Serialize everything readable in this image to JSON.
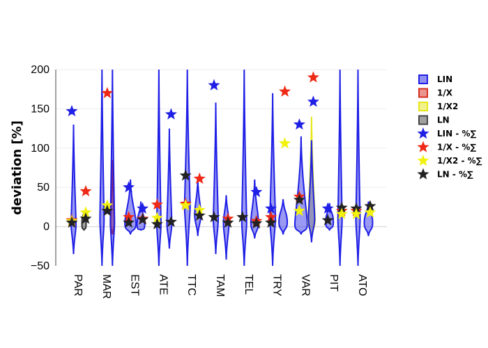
{
  "chart_data": {
    "type": "violin",
    "ylabel": "deviation [%]",
    "ylim": [
      -50,
      200
    ],
    "yticks": [
      -50,
      0,
      50,
      100,
      150,
      200
    ],
    "grid": true,
    "legend_position": "top-right",
    "categories": [
      "PAR",
      "MAR",
      "EST",
      "ATE",
      "TTC",
      "TAM",
      "TEL",
      "TRY",
      "VAR",
      "PIT",
      "ATO"
    ],
    "colors": {
      "LIN": "#1f1fe6",
      "1/X": "#d62d20",
      "1/X2": "#e6e61a",
      "LN": "#333333"
    },
    "legend": [
      {
        "name": "LIN",
        "symbol": "square",
        "color": "#1f1fe6"
      },
      {
        "name": "1/X",
        "symbol": "square",
        "color": "#d62d20"
      },
      {
        "name": "1/X2",
        "symbol": "square",
        "color": "#e6e61a"
      },
      {
        "name": "LN",
        "symbol": "square",
        "color": "#444444"
      },
      {
        "name": "LIN - %∑",
        "symbol": "star",
        "color": "#1f1fe6"
      },
      {
        "name": "1/X - %∑",
        "symbol": "star",
        "color": "#ee2a16"
      },
      {
        "name": "1/X2 - %∑",
        "symbol": "star",
        "color": "#f2f20f"
      },
      {
        "name": "LN - %∑",
        "symbol": "star",
        "color": "#222222"
      }
    ],
    "violins": [
      {
        "category": "PAR",
        "series": "LIN",
        "offset": -0.75,
        "min": -35,
        "max": 130,
        "center": 3,
        "width": 0.35
      },
      {
        "category": "PAR",
        "series": "LN",
        "offset": 0.75,
        "min": -5,
        "max": 20,
        "center": 4,
        "width": 0.3
      },
      {
        "category": "MAR",
        "series": "LIN",
        "offset": -0.75,
        "min": -50,
        "max": 200,
        "center": 8,
        "width": 0.3
      },
      {
        "category": "MAR",
        "series": "1/X",
        "offset": 0.75,
        "min": -10,
        "max": 85,
        "center": 5,
        "width": 0.25
      },
      {
        "category": "MAR",
        "series": "LIN",
        "offset": 0.75,
        "min": -50,
        "max": 200,
        "center": 5,
        "width": 0.3
      },
      {
        "category": "EST",
        "series": "LIN",
        "offset": -0.75,
        "min": -10,
        "max": 60,
        "center": 4,
        "width": 0.8
      },
      {
        "category": "EST",
        "series": "LIN",
        "offset": 0.75,
        "min": -5,
        "max": 32,
        "center": 3,
        "width": 0.55
      },
      {
        "category": "ATE",
        "series": "LIN",
        "offset": -0.75,
        "min": -50,
        "max": 200,
        "center": 3,
        "width": 0.3
      },
      {
        "category": "ATE",
        "series": "LIN",
        "offset": 0.75,
        "min": -28,
        "max": 125,
        "center": 4,
        "width": 0.35
      },
      {
        "category": "TTC",
        "series": "LIN",
        "offset": -0.75,
        "min": -50,
        "max": 200,
        "center": 25,
        "width": 0.4
      },
      {
        "category": "TTC",
        "series": "LIN",
        "offset": 0.75,
        "min": -12,
        "max": 60,
        "center": 15,
        "width": 0.45
      },
      {
        "category": "TAM",
        "series": "LIN",
        "offset": -0.75,
        "min": -35,
        "max": 158,
        "center": 8,
        "width": 0.35
      },
      {
        "category": "TAM",
        "series": "LIN",
        "offset": 0.75,
        "min": -42,
        "max": 40,
        "center": 4,
        "width": 0.4
      },
      {
        "category": "TEL",
        "series": "LIN",
        "offset": -0.75,
        "min": -50,
        "max": 200,
        "center": 5,
        "width": 0.35
      },
      {
        "category": "TEL",
        "series": "LIN",
        "offset": 0.75,
        "min": -15,
        "max": 60,
        "center": 5,
        "width": 0.55
      },
      {
        "category": "TRY",
        "series": "LIN",
        "offset": -0.75,
        "min": -50,
        "max": 170,
        "center": 10,
        "width": 0.4
      },
      {
        "category": "TRY",
        "series": "LIN",
        "offset": 0.75,
        "min": -10,
        "max": 35,
        "center": 6,
        "width": 0.6
      },
      {
        "category": "VAR",
        "series": "LIN",
        "offset": -0.75,
        "min": -10,
        "max": 115,
        "center": 3,
        "width": 0.9
      },
      {
        "category": "VAR",
        "series": "1/X2",
        "offset": 0.75,
        "min": -15,
        "max": 140,
        "center": 8,
        "width": 0.5
      },
      {
        "category": "VAR",
        "series": "LIN",
        "offset": 0.75,
        "min": -20,
        "max": 110,
        "center": 10,
        "width": 0.45
      },
      {
        "category": "PIT",
        "series": "LIN",
        "offset": -0.75,
        "min": -5,
        "max": 30,
        "center": 6,
        "width": 0.55
      },
      {
        "category": "PIT",
        "series": "LIN",
        "offset": 0.75,
        "min": -50,
        "max": 200,
        "center": 8,
        "width": 0.3
      },
      {
        "category": "ATO",
        "series": "LIN",
        "offset": -0.75,
        "min": -50,
        "max": 200,
        "center": 8,
        "width": 0.3
      },
      {
        "category": "ATO",
        "series": "LIN",
        "offset": 0.75,
        "min": -12,
        "max": 32,
        "center": 5,
        "width": 0.6
      }
    ],
    "stars": [
      {
        "category": "PAR",
        "series": "LIN - %∑",
        "offset": -1,
        "value": 147
      },
      {
        "category": "PAR",
        "series": "1/X - %∑",
        "offset": -1,
        "value": 8
      },
      {
        "category": "PAR",
        "series": "1/X2 - %∑",
        "offset": -1,
        "value": 7
      },
      {
        "category": "PAR",
        "series": "LN - %∑",
        "offset": -1,
        "value": 5
      },
      {
        "category": "PAR",
        "series": "1/X - %∑",
        "offset": 1,
        "value": 45
      },
      {
        "category": "PAR",
        "series": "1/X2 - %∑",
        "offset": 1,
        "value": 18
      },
      {
        "category": "PAR",
        "series": "LN - %∑",
        "offset": 1,
        "value": 10
      },
      {
        "category": "MAR",
        "series": "1/X - %∑",
        "offset": 0,
        "value": 170
      },
      {
        "category": "MAR",
        "series": "1/X2 - %∑",
        "offset": 0,
        "value": 27
      },
      {
        "category": "MAR",
        "series": "LN - %∑",
        "offset": 0,
        "value": 20
      },
      {
        "category": "EST",
        "series": "LIN - %∑",
        "offset": -1,
        "value": 50
      },
      {
        "category": "EST",
        "series": "1/X - %∑",
        "offset": -1,
        "value": 12
      },
      {
        "category": "EST",
        "series": "LN - %∑",
        "offset": -1,
        "value": 5
      },
      {
        "category": "EST",
        "series": "LIN - %∑",
        "offset": 1,
        "value": 23
      },
      {
        "category": "EST",
        "series": "1/X - %∑",
        "offset": 1,
        "value": 10
      },
      {
        "category": "EST",
        "series": "LN - %∑",
        "offset": 1,
        "value": 9
      },
      {
        "category": "ATE",
        "series": "1/X - %∑",
        "offset": -1,
        "value": 28
      },
      {
        "category": "ATE",
        "series": "1/X2 - %∑",
        "offset": -1,
        "value": 11
      },
      {
        "category": "ATE",
        "series": "LN - %∑",
        "offset": -1,
        "value": 3
      },
      {
        "category": "ATE",
        "series": "LIN - %∑",
        "offset": 1,
        "value": 143
      },
      {
        "category": "ATE",
        "series": "LN - %∑",
        "offset": 1,
        "value": 6
      },
      {
        "category": "TTC",
        "series": "1/X - %∑",
        "offset": -1,
        "value": 29
      },
      {
        "category": "TTC",
        "series": "1/X2 - %∑",
        "offset": -1,
        "value": 27
      },
      {
        "category": "TTC",
        "series": "LN - %∑",
        "offset": -1,
        "value": 65
      },
      {
        "category": "TTC",
        "series": "1/X - %∑",
        "offset": 1,
        "value": 61
      },
      {
        "category": "TTC",
        "series": "1/X2 - %∑",
        "offset": 1,
        "value": 21
      },
      {
        "category": "TTC",
        "series": "LN - %∑",
        "offset": 1,
        "value": 14
      },
      {
        "category": "TAM",
        "series": "LIN - %∑",
        "offset": -1,
        "value": 180
      },
      {
        "category": "TAM",
        "series": "LN - %∑",
        "offset": -1,
        "value": 12
      },
      {
        "category": "TAM",
        "series": "1/X - %∑",
        "offset": 1,
        "value": 10
      },
      {
        "category": "TAM",
        "series": "LN - %∑",
        "offset": 1,
        "value": 5
      },
      {
        "category": "TEL",
        "series": "LN - %∑",
        "offset": -1,
        "value": 12
      },
      {
        "category": "TEL",
        "series": "LIN - %∑",
        "offset": 1,
        "value": 44
      },
      {
        "category": "TEL",
        "series": "1/X - %∑",
        "offset": 1,
        "value": 7
      },
      {
        "category": "TEL",
        "series": "LN - %∑",
        "offset": 1,
        "value": 4
      },
      {
        "category": "TRY",
        "series": "LIN - %∑",
        "offset": -1,
        "value": 23
      },
      {
        "category": "TRY",
        "series": "1/X - %∑",
        "offset": -1,
        "value": 12
      },
      {
        "category": "TRY",
        "series": "LN - %∑",
        "offset": -1,
        "value": 5
      },
      {
        "category": "TRY",
        "series": "1/X - %∑",
        "offset": 1,
        "value": 172
      },
      {
        "category": "TRY",
        "series": "1/X2 - %∑",
        "offset": 1,
        "value": 106
      },
      {
        "category": "VAR",
        "series": "LIN - %∑",
        "offset": -1,
        "value": 130
      },
      {
        "category": "VAR",
        "series": "1/X - %∑",
        "offset": -1,
        "value": 38
      },
      {
        "category": "VAR",
        "series": "LN - %∑",
        "offset": -1,
        "value": 34
      },
      {
        "category": "VAR",
        "series": "1/X2 - %∑",
        "offset": -1,
        "value": 20
      },
      {
        "category": "VAR",
        "series": "1/X - %∑",
        "offset": 1,
        "value": 190
      },
      {
        "category": "VAR",
        "series": "LIN - %∑",
        "offset": 1,
        "value": 159
      },
      {
        "category": "PIT",
        "series": "LIN - %∑",
        "offset": -1,
        "value": 23
      },
      {
        "category": "PIT",
        "series": "LN - %∑",
        "offset": -1,
        "value": 8
      },
      {
        "category": "PIT",
        "series": "1/X - %∑",
        "offset": 1,
        "value": 20
      },
      {
        "category": "PIT",
        "series": "LN - %∑",
        "offset": 1,
        "value": 24
      },
      {
        "category": "PIT",
        "series": "1/X2 - %∑",
        "offset": 1,
        "value": 16
      },
      {
        "category": "ATO",
        "series": "1/X - %∑",
        "offset": -1,
        "value": 20
      },
      {
        "category": "ATO",
        "series": "LN - %∑",
        "offset": -1,
        "value": 23
      },
      {
        "category": "ATO",
        "series": "1/X2 - %∑",
        "offset": -1,
        "value": 16
      },
      {
        "category": "ATO",
        "series": "LN - %∑",
        "offset": 1,
        "value": 26
      },
      {
        "category": "ATO",
        "series": "1/X2 - %∑",
        "offset": 1,
        "value": 18
      }
    ]
  }
}
